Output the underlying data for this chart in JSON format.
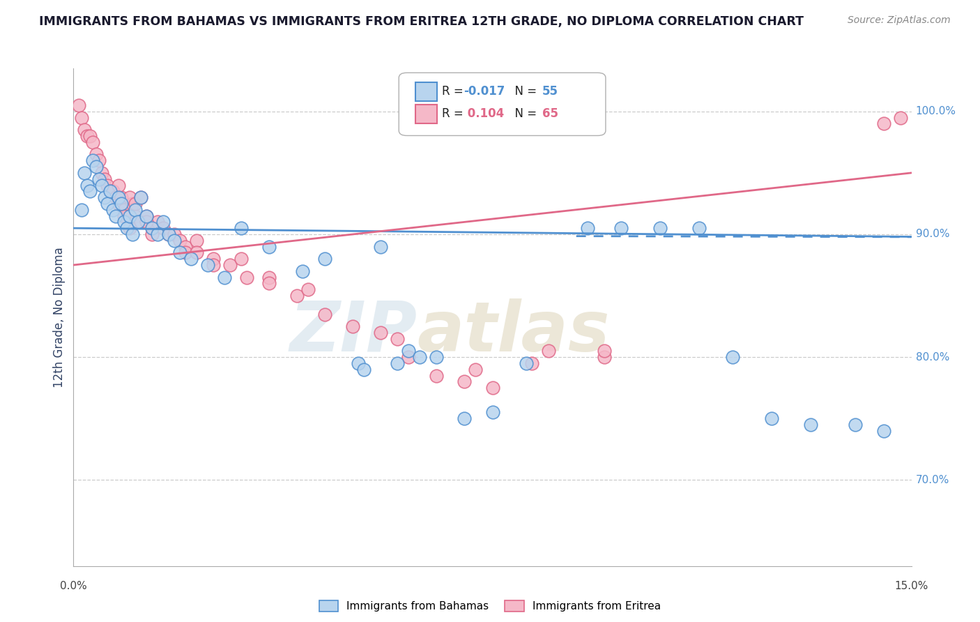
{
  "title": "IMMIGRANTS FROM BAHAMAS VS IMMIGRANTS FROM ERITREA 12TH GRADE, NO DIPLOMA CORRELATION CHART",
  "source": "Source: ZipAtlas.com",
  "xmin": 0.0,
  "xmax": 15.0,
  "ymin": 63.0,
  "ymax": 103.5,
  "ytick_values": [
    70.0,
    80.0,
    90.0,
    100.0
  ],
  "legend_blue_r": "-0.017",
  "legend_blue_n": "55",
  "legend_pink_r": "0.104",
  "legend_pink_n": "65",
  "blue_fill": "#b8d4ee",
  "pink_fill": "#f5b8c8",
  "blue_edge": "#5090d0",
  "pink_edge": "#e06888",
  "blue_line": "#5090d0",
  "pink_line": "#e06888",
  "blue_label": "Immigrants from Bahamas",
  "pink_label": "Immigrants from Eritrea",
  "ylabel": "12th Grade, No Diploma",
  "blue_scatter_x": [
    0.15,
    0.2,
    0.25,
    0.3,
    0.35,
    0.4,
    0.45,
    0.5,
    0.55,
    0.6,
    0.65,
    0.7,
    0.75,
    0.8,
    0.85,
    0.9,
    0.95,
    1.0,
    1.05,
    1.1,
    1.15,
    1.2,
    1.3,
    1.4,
    1.5,
    1.6,
    1.7,
    1.8,
    1.9,
    2.1,
    2.4,
    2.7,
    3.0,
    3.5,
    4.1,
    4.5,
    5.1,
    5.5,
    6.0,
    6.5,
    7.0,
    7.5,
    8.1,
    9.2,
    9.8,
    10.5,
    11.2,
    11.8,
    12.5,
    13.2,
    14.0,
    14.5,
    5.2,
    5.8,
    6.2
  ],
  "blue_scatter_y": [
    92.0,
    95.0,
    94.0,
    93.5,
    96.0,
    95.5,
    94.5,
    94.0,
    93.0,
    92.5,
    93.5,
    92.0,
    91.5,
    93.0,
    92.5,
    91.0,
    90.5,
    91.5,
    90.0,
    92.0,
    91.0,
    93.0,
    91.5,
    90.5,
    90.0,
    91.0,
    90.0,
    89.5,
    88.5,
    88.0,
    87.5,
    86.5,
    90.5,
    89.0,
    87.0,
    88.0,
    79.5,
    89.0,
    80.5,
    80.0,
    75.0,
    75.5,
    79.5,
    90.5,
    90.5,
    90.5,
    90.5,
    80.0,
    75.0,
    74.5,
    74.5,
    74.0,
    79.0,
    79.5,
    80.0
  ],
  "pink_scatter_x": [
    0.1,
    0.15,
    0.2,
    0.25,
    0.3,
    0.35,
    0.4,
    0.45,
    0.5,
    0.55,
    0.6,
    0.65,
    0.7,
    0.75,
    0.8,
    0.85,
    0.9,
    0.95,
    1.0,
    1.05,
    1.1,
    1.2,
    1.3,
    1.4,
    1.5,
    1.6,
    1.7,
    1.8,
    1.9,
    2.0,
    2.2,
    2.5,
    2.8,
    3.1,
    3.5,
    4.0,
    4.5,
    5.0,
    5.5,
    6.0,
    6.5,
    7.0,
    7.5,
    8.5,
    9.5,
    1.0,
    1.1,
    1.2,
    1.3,
    1.4,
    0.8,
    0.9,
    1.0,
    2.0,
    2.5,
    3.0,
    3.5,
    4.2,
    5.8,
    7.2,
    8.2,
    9.5,
    14.5,
    14.8,
    2.2
  ],
  "pink_scatter_y": [
    100.5,
    99.5,
    98.5,
    98.0,
    98.0,
    97.5,
    96.5,
    96.0,
    95.0,
    94.5,
    94.0,
    93.5,
    93.5,
    93.0,
    92.5,
    93.0,
    92.0,
    91.5,
    91.5,
    92.5,
    91.5,
    91.0,
    91.5,
    90.5,
    91.0,
    90.5,
    90.0,
    90.0,
    89.5,
    89.0,
    89.5,
    88.0,
    87.5,
    86.5,
    86.5,
    85.0,
    83.5,
    82.5,
    82.0,
    80.0,
    78.5,
    78.0,
    77.5,
    80.5,
    80.0,
    93.0,
    92.5,
    93.0,
    91.0,
    90.0,
    94.0,
    91.5,
    90.5,
    88.5,
    87.5,
    88.0,
    86.0,
    85.5,
    81.5,
    79.0,
    79.5,
    80.5,
    99.0,
    99.5,
    88.5
  ],
  "blue_trend_x0": 0.0,
  "blue_trend_x1": 15.0,
  "blue_trend_y0": 90.5,
  "blue_trend_y1": 89.8,
  "pink_trend_x0": 0.0,
  "pink_trend_x1": 15.0,
  "pink_trend_y0": 87.5,
  "pink_trend_y1": 95.0
}
